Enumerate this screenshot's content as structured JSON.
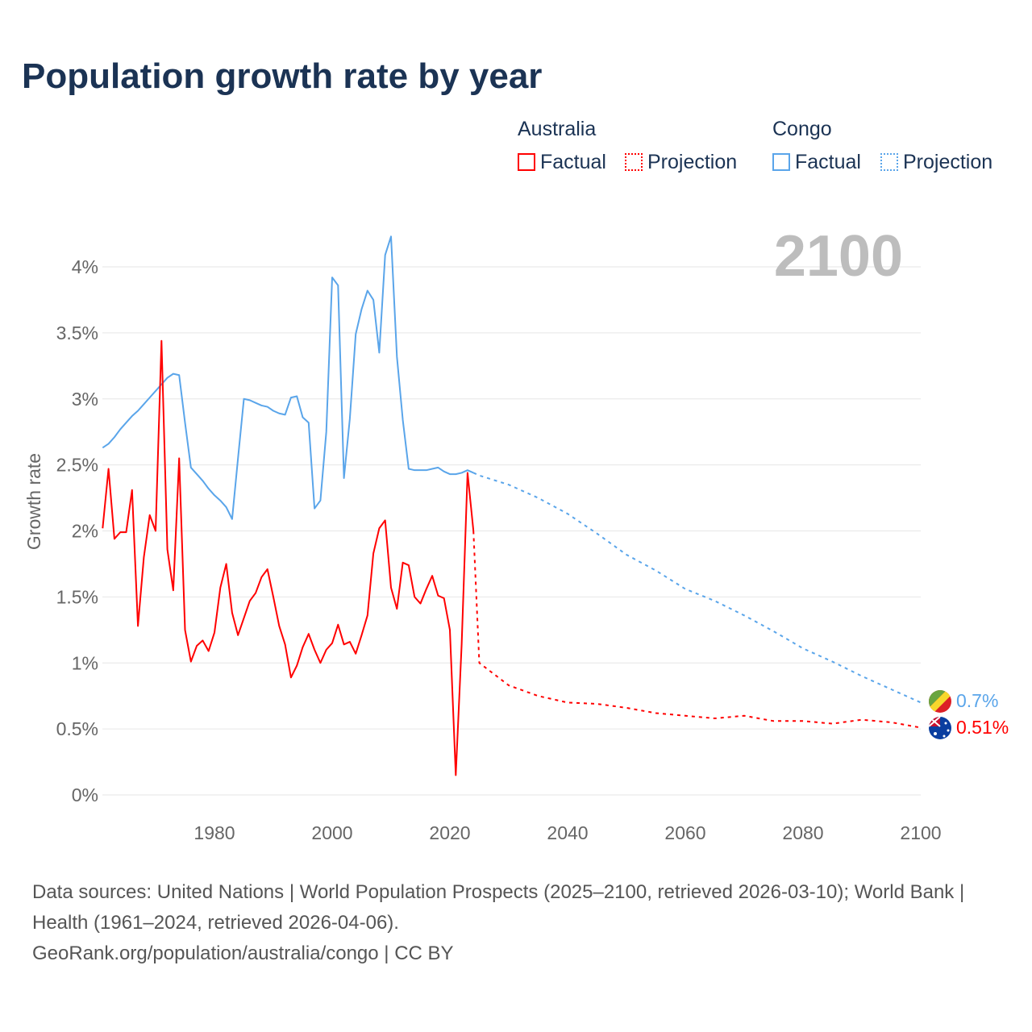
{
  "title": "Population growth rate by year",
  "legend": {
    "australia": "Australia",
    "congo": "Congo",
    "factual": "Factual",
    "projection": "Projection"
  },
  "year_label": "2100",
  "sources": {
    "line1": "Data sources: United Nations | World Population Prospects (2025–2100, retrieved 2026-03-10); World Bank | Health (1961–2024, retrieved 2026-04-06).",
    "line2": "GeoRank.org/population/australia/congo | CC BY"
  },
  "chart_data": {
    "type": "line",
    "ylabel": "Growth rate",
    "xlabel": "",
    "ylim": [
      0,
      4.25
    ],
    "xlim": [
      1961,
      2100
    ],
    "yticks": [
      "0%",
      "0.5%",
      "1%",
      "1.5%",
      "2%",
      "2.5%",
      "3%",
      "3.5%",
      "4%"
    ],
    "xticks": [
      "1980",
      "2000",
      "2020",
      "2040",
      "2060",
      "2080",
      "2100"
    ],
    "colors": {
      "australia": "#ff0000",
      "congo": "#5aa5ea"
    },
    "end_labels": {
      "congo": "0.7%",
      "australia": "0.51%"
    },
    "australia_factual": {
      "start": 1961,
      "values": [
        2.02,
        2.47,
        1.94,
        1.99,
        1.99,
        2.31,
        1.28,
        1.8,
        2.12,
        2.0,
        3.44,
        1.86,
        1.55,
        2.55,
        1.25,
        1.01,
        1.13,
        1.17,
        1.09,
        1.23,
        1.57,
        1.75,
        1.38,
        1.21,
        1.34,
        1.47,
        1.53,
        1.65,
        1.71,
        1.5,
        1.28,
        1.14,
        0.89,
        0.98,
        1.12,
        1.22,
        1.1,
        1.0,
        1.1,
        1.15,
        1.29,
        1.14,
        1.16,
        1.07,
        1.21,
        1.36,
        1.83,
        2.02,
        2.08,
        1.57,
        1.41,
        1.76,
        1.74,
        1.5,
        1.45,
        1.56,
        1.66,
        1.51,
        1.49,
        1.25,
        0.15,
        1.14,
        2.44,
        2.0
      ]
    },
    "australia_projection": {
      "x": [
        2024,
        2025,
        2030,
        2035,
        2040,
        2045,
        2050,
        2055,
        2060,
        2065,
        2070,
        2075,
        2080,
        2085,
        2090,
        2095,
        2100
      ],
      "values": [
        2.0,
        1.0,
        0.83,
        0.75,
        0.7,
        0.69,
        0.66,
        0.62,
        0.6,
        0.58,
        0.6,
        0.56,
        0.56,
        0.54,
        0.57,
        0.55,
        0.51
      ]
    },
    "congo_factual": {
      "start": 1961,
      "values": [
        2.63,
        2.66,
        2.71,
        2.77,
        2.82,
        2.87,
        2.91,
        2.96,
        3.01,
        3.06,
        3.11,
        3.16,
        3.19,
        3.18,
        2.82,
        2.48,
        2.43,
        2.38,
        2.32,
        2.27,
        2.23,
        2.18,
        2.09,
        2.55,
        3.0,
        2.99,
        2.97,
        2.95,
        2.94,
        2.91,
        2.89,
        2.88,
        3.01,
        3.02,
        2.86,
        2.82,
        2.17,
        2.23,
        2.75,
        3.92,
        3.86,
        2.4,
        2.85,
        3.49,
        3.68,
        3.82,
        3.75,
        3.35,
        4.09,
        4.23,
        3.32,
        2.84,
        2.47,
        2.46,
        2.46,
        2.46,
        2.47,
        2.48,
        2.45,
        2.43,
        2.43,
        2.44,
        2.46,
        2.44
      ]
    },
    "congo_projection": {
      "x": [
        2024,
        2025,
        2030,
        2035,
        2040,
        2045,
        2050,
        2055,
        2060,
        2065,
        2070,
        2075,
        2080,
        2085,
        2090,
        2095,
        2100
      ],
      "values": [
        2.44,
        2.42,
        2.35,
        2.25,
        2.13,
        1.98,
        1.82,
        1.7,
        1.56,
        1.47,
        1.36,
        1.24,
        1.11,
        1.01,
        0.9,
        0.8,
        0.7
      ]
    }
  }
}
